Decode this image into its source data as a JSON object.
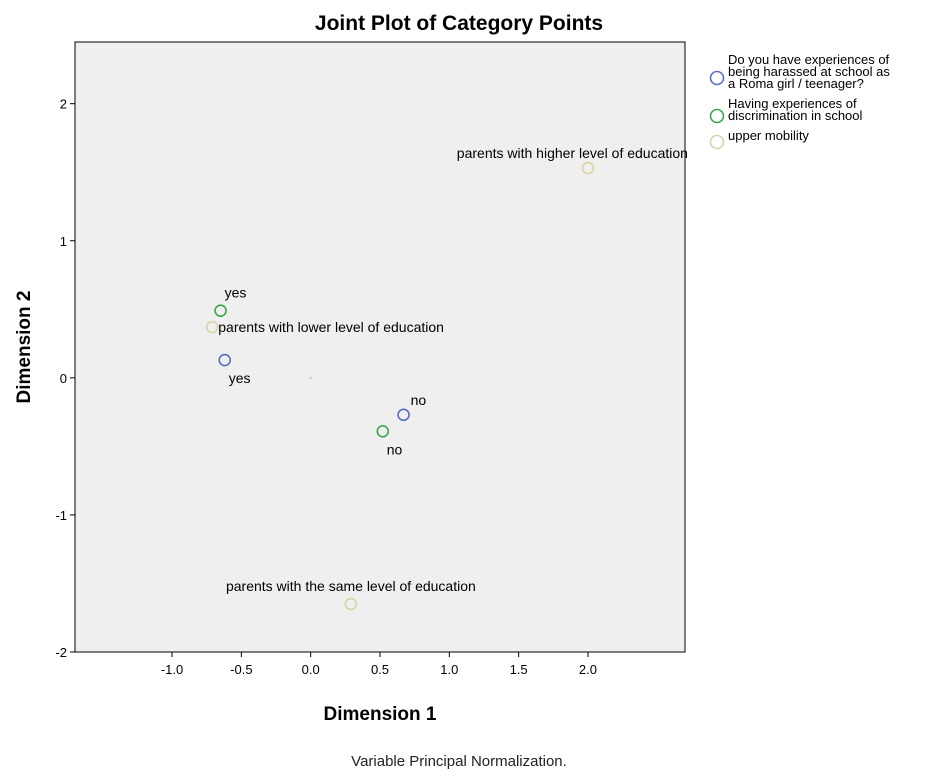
{
  "chart_data": {
    "type": "scatter",
    "title": "Joint Plot of Category Points",
    "xlabel": "Dimension 1",
    "ylabel": "Dimension 2",
    "xlim": [
      -1.7,
      2.7
    ],
    "ylim": [
      -2.0,
      2.45
    ],
    "x_ticks": [
      -1.0,
      -0.5,
      0.0,
      0.5,
      1.0,
      1.5,
      2.0
    ],
    "x_tick_labels": [
      "-1.0",
      "-0.5",
      "0.0",
      "0.5",
      "1.0",
      "1.5",
      "2.0"
    ],
    "y_ticks": [
      -2,
      -1,
      0,
      1,
      2
    ],
    "y_tick_labels": [
      "-2",
      "-1",
      "0",
      "1",
      "2"
    ],
    "grid": false,
    "legend_position": "right",
    "plot_background": "#efefef",
    "footnote": "Variable Principal Normalization.",
    "series": [
      {
        "name": "Do you have experiences of being harassed at school as a Roma girl / teenager?",
        "legend_lines": [
          "Do you have experiences of",
          "being harassed at school as",
          "a Roma girl / teenager?"
        ],
        "color": "#5a6fc0",
        "points": [
          {
            "x": -0.62,
            "y": 0.13,
            "label": "yes",
            "label_pos": "below"
          },
          {
            "x": 0.67,
            "y": -0.27,
            "label": "no",
            "label_pos": "above-right"
          }
        ]
      },
      {
        "name": "Having experiences of discrimination in school",
        "legend_lines": [
          "Having experiences of",
          "discrimination in school"
        ],
        "color": "#3aa84a",
        "points": [
          {
            "x": -0.65,
            "y": 0.49,
            "label": "yes",
            "label_pos": "above"
          },
          {
            "x": 0.52,
            "y": -0.39,
            "label": "no",
            "label_pos": "below"
          }
        ]
      },
      {
        "name": "upper mobility",
        "legend_lines": [
          "upper mobility"
        ],
        "color": "#d8d4a8",
        "points": [
          {
            "x": 2.0,
            "y": 1.53,
            "label": "parents with higher level of education",
            "label_pos": "above-left"
          },
          {
            "x": -0.71,
            "y": 0.37,
            "label": "parents with lower level of education",
            "label_pos": "right"
          },
          {
            "x": 0.29,
            "y": -1.65,
            "label": "parents with the same level of education",
            "label_pos": "above"
          }
        ]
      }
    ]
  }
}
